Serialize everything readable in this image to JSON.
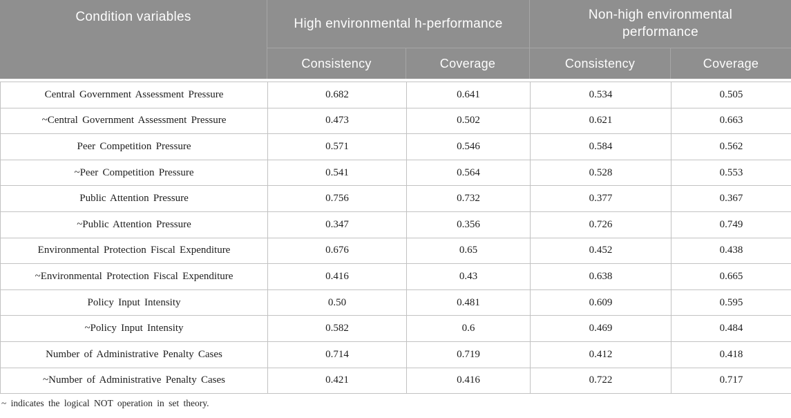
{
  "table": {
    "header": {
      "condition_label": "Condition variables",
      "groups": [
        {
          "label": "High environmental h-performance"
        },
        {
          "label": "Non-high environmental performance"
        }
      ],
      "subheaders": [
        "Consistency",
        "Coverage",
        "Consistency",
        "Coverage"
      ]
    },
    "rows": [
      {
        "label": "Central Government Assessment Pressure",
        "values": [
          "0.682",
          "0.641",
          "0.534",
          "0.505"
        ]
      },
      {
        "label": "~Central Government Assessment Pressure",
        "values": [
          "0.473",
          "0.502",
          "0.621",
          "0.663"
        ]
      },
      {
        "label": "Peer Competition Pressure",
        "values": [
          "0.571",
          "0.546",
          "0.584",
          "0.562"
        ]
      },
      {
        "label": "~Peer Competition Pressure",
        "values": [
          "0.541",
          "0.564",
          "0.528",
          "0.553"
        ]
      },
      {
        "label": "Public Attention Pressure",
        "values": [
          "0.756",
          "0.732",
          "0.377",
          "0.367"
        ]
      },
      {
        "label": "~Public Attention Pressure",
        "values": [
          "0.347",
          "0.356",
          "0.726",
          "0.749"
        ]
      },
      {
        "label": "Environmental Protection Fiscal Expenditure",
        "values": [
          "0.676",
          "0.65",
          "0.452",
          "0.438"
        ]
      },
      {
        "label": "~Environmental Protection Fiscal Expenditure",
        "values": [
          "0.416",
          "0.43",
          "0.638",
          "0.665"
        ]
      },
      {
        "label": "Policy Input Intensity",
        "values": [
          "0.50",
          "0.481",
          "0.609",
          "0.595"
        ]
      },
      {
        "label": "~Policy Input Intensity",
        "values": [
          "0.582",
          "0.6",
          "0.469",
          "0.484"
        ]
      },
      {
        "label": "Number of Administrative Penalty Cases",
        "values": [
          "0.714",
          "0.719",
          "0.412",
          "0.418"
        ]
      },
      {
        "label": "~Number of Administrative Penalty Cases",
        "values": [
          "0.421",
          "0.416",
          "0.722",
          "0.717"
        ]
      }
    ],
    "footnote": "~ indicates the logical NOT operation in set theory."
  },
  "colors": {
    "header_bg": "#8f8f8f",
    "header_text": "#fdfdfd",
    "header_divider": "#a6a6a6",
    "body_border": "#c2c2c2",
    "body_text": "#1d1d1d"
  }
}
